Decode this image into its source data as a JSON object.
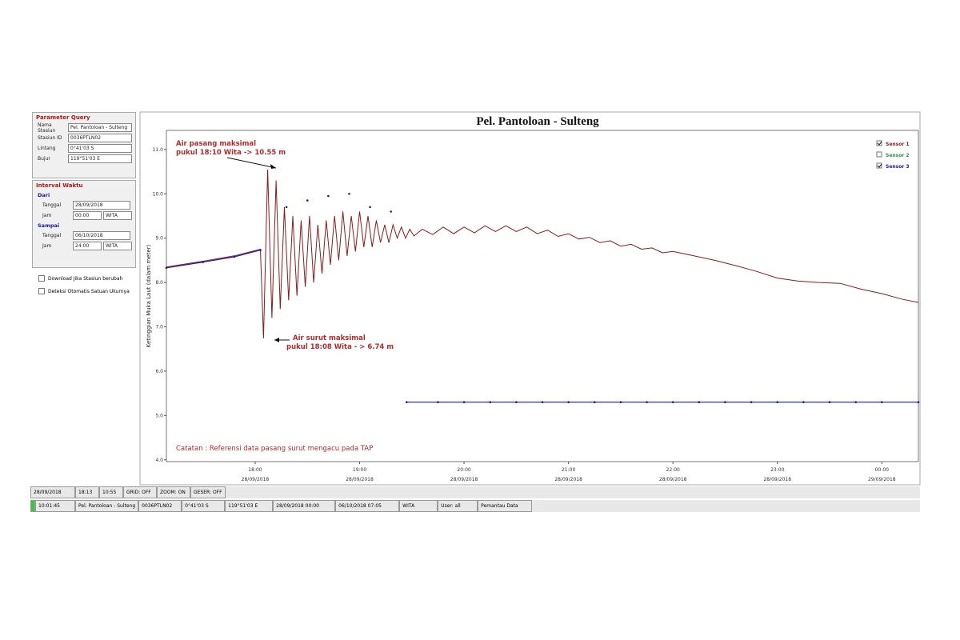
{
  "query_panel": {
    "title": "Parameter Query",
    "fields": [
      {
        "label": "Nama Stasiun",
        "value": "Pel. Pantoloan - Sulteng"
      },
      {
        "label": "Stasiun ID",
        "value": "0036PTLN02"
      },
      {
        "label": "Lintang",
        "value": "0°41'03 S"
      },
      {
        "label": "Bujur",
        "value": "119°51'03 E"
      }
    ]
  },
  "interval_panel": {
    "title": "Interval Waktu",
    "from": {
      "title": "Dari",
      "date_label": "Tanggal",
      "date": "28/09/2018",
      "time_label": "Jam",
      "time": "00:00",
      "zone": "WITA"
    },
    "to": {
      "title": "Sampai",
      "date_label": "Tanggal",
      "date": "06/10/2018",
      "time_label": "Jam",
      "time": "24:00",
      "zone": "WITA"
    }
  },
  "options": [
    "Download Jika Stasiun berubah",
    "Deteksi Otomatis Satuan Ukurnya"
  ],
  "chart_data": {
    "type": "line",
    "title": "Pel. Pantoloan - Sulteng",
    "y_label": "Ketinggian Muka Laut (dalam meter)",
    "xlim": [
      17.15,
      24.35
    ],
    "xticks": [
      {
        "value": 18,
        "label": "18:00"
      },
      {
        "value": 19,
        "label": "19:00"
      },
      {
        "value": 20,
        "label": "20:00"
      },
      {
        "value": 21,
        "label": "21:00"
      },
      {
        "value": 22,
        "label": "22:00"
      },
      {
        "value": 23,
        "label": "23:00"
      },
      {
        "value": 24,
        "label": "00:00"
      }
    ],
    "xtick_dates": [
      "28/09/2018",
      "28/09/2018",
      "28/09/2018",
      "28/09/2018",
      "28/09/2018",
      "28/09/2018",
      "29/09/2018"
    ],
    "ylim": [
      3.96,
      11.43
    ],
    "yticks": [
      {
        "value": 4,
        "label": "4.0"
      },
      {
        "value": 5,
        "label": "5.0"
      },
      {
        "value": 6,
        "label": "6.0"
      },
      {
        "value": 7,
        "label": "7.0"
      },
      {
        "value": 8,
        "label": "8.0"
      },
      {
        "value": 9,
        "label": "9.0"
      },
      {
        "value": 10,
        "label": "10.0"
      },
      {
        "value": 11,
        "label": "11.0"
      }
    ],
    "grid": false,
    "legend": "top-right",
    "series": [
      {
        "name": "Sensor 1",
        "color": "#8b1a1a",
        "checked": true,
        "x": [
          17.15,
          17.5,
          17.8,
          18.05,
          18.08,
          18.12,
          18.16,
          18.2,
          18.24,
          18.28,
          18.32,
          18.36,
          18.4,
          18.44,
          18.48,
          18.52,
          18.56,
          18.6,
          18.64,
          18.68,
          18.72,
          18.76,
          18.8,
          18.84,
          18.88,
          18.92,
          18.96,
          19.0,
          19.04,
          19.08,
          19.12,
          19.16,
          19.2,
          19.24,
          19.28,
          19.32,
          19.36,
          19.4,
          19.44,
          19.48,
          19.52,
          19.6,
          19.7,
          19.8,
          19.9,
          20.0,
          20.1,
          20.2,
          20.3,
          20.4,
          20.5,
          20.6,
          20.7,
          20.8,
          20.9,
          21.0,
          21.1,
          21.2,
          21.3,
          21.4,
          21.5,
          21.6,
          21.7,
          21.8,
          21.9,
          22.0,
          22.2,
          22.4,
          22.6,
          22.8,
          23.0,
          23.2,
          23.4,
          23.6,
          23.8,
          24.0,
          24.2,
          24.35
        ],
        "values": [
          8.35,
          8.48,
          8.6,
          8.75,
          6.74,
          10.55,
          7.2,
          10.3,
          7.4,
          9.7,
          7.6,
          9.5,
          7.7,
          9.4,
          7.9,
          9.5,
          8.0,
          9.3,
          8.2,
          9.4,
          8.4,
          9.5,
          8.5,
          9.6,
          8.6,
          9.5,
          8.7,
          9.6,
          8.8,
          9.5,
          8.8,
          9.4,
          8.9,
          9.3,
          8.9,
          9.3,
          9.0,
          9.25,
          9.0,
          9.2,
          9.05,
          9.2,
          9.08,
          9.25,
          9.1,
          9.25,
          9.12,
          9.28,
          9.15,
          9.28,
          9.15,
          9.25,
          9.1,
          9.18,
          9.04,
          9.1,
          8.98,
          9.02,
          8.9,
          8.94,
          8.82,
          8.86,
          8.75,
          8.78,
          8.67,
          8.7,
          8.6,
          8.5,
          8.38,
          8.25,
          8.1,
          8.03,
          8.0,
          7.98,
          7.85,
          7.75,
          7.62,
          7.55
        ]
      },
      {
        "name": "Sensor 2",
        "color": "#2e8b57",
        "checked": false,
        "x": [],
        "values": []
      },
      {
        "name": "Sensor 3",
        "color": "#1a1aa0",
        "checked": true,
        "x": [
          17.15,
          17.5,
          17.8,
          18.05,
          18.1,
          18.3,
          18.4,
          18.5,
          18.6,
          18.7,
          18.8,
          18.9,
          19.0,
          19.1,
          19.2,
          19.3,
          19.4,
          19.45,
          19.75,
          20.0,
          20.25,
          20.5,
          20.75,
          21.0,
          21.25,
          21.5,
          21.75,
          22.0,
          22.25,
          22.5,
          22.75,
          23.0,
          23.25,
          23.5,
          23.75,
          24.0,
          24.35
        ],
        "values": [
          8.33,
          8.46,
          8.58,
          8.73,
          null,
          9.7,
          null,
          9.85,
          null,
          9.95,
          null,
          10.0,
          null,
          9.7,
          null,
          9.6,
          null,
          5.3,
          5.3,
          5.3,
          5.3,
          5.3,
          5.3,
          5.3,
          5.3,
          5.3,
          5.3,
          5.3,
          5.3,
          5.3,
          5.3,
          5.3,
          5.3,
          5.3,
          5.3,
          5.3,
          5.3
        ]
      }
    ],
    "annotations": [
      [
        "Air pasang maksimal",
        "pukul 18:10 Wita -> 10.55 m"
      ],
      [
        "Air surut maksimal",
        "pukul 18:08 Wita - > 6.74 m"
      ]
    ],
    "note": "Catatan : Referensi data pasang surut mengacu pada TAP"
  },
  "status_bar": {
    "row1": [
      "28/09/2018",
      "18:13",
      "10:55",
      "GRID: OFF",
      "ZOOM: ON",
      "GESER: OFF"
    ],
    "row2": [
      "10:01:45",
      "Pel. Pantoloan - Sulteng",
      "0036PTLN02",
      "0°41'03 S",
      "119°51'03 E",
      "28/09/2018 00:00",
      "06/10/2018 07:05",
      "WITA",
      "User: all",
      "Pemantau Data"
    ]
  }
}
